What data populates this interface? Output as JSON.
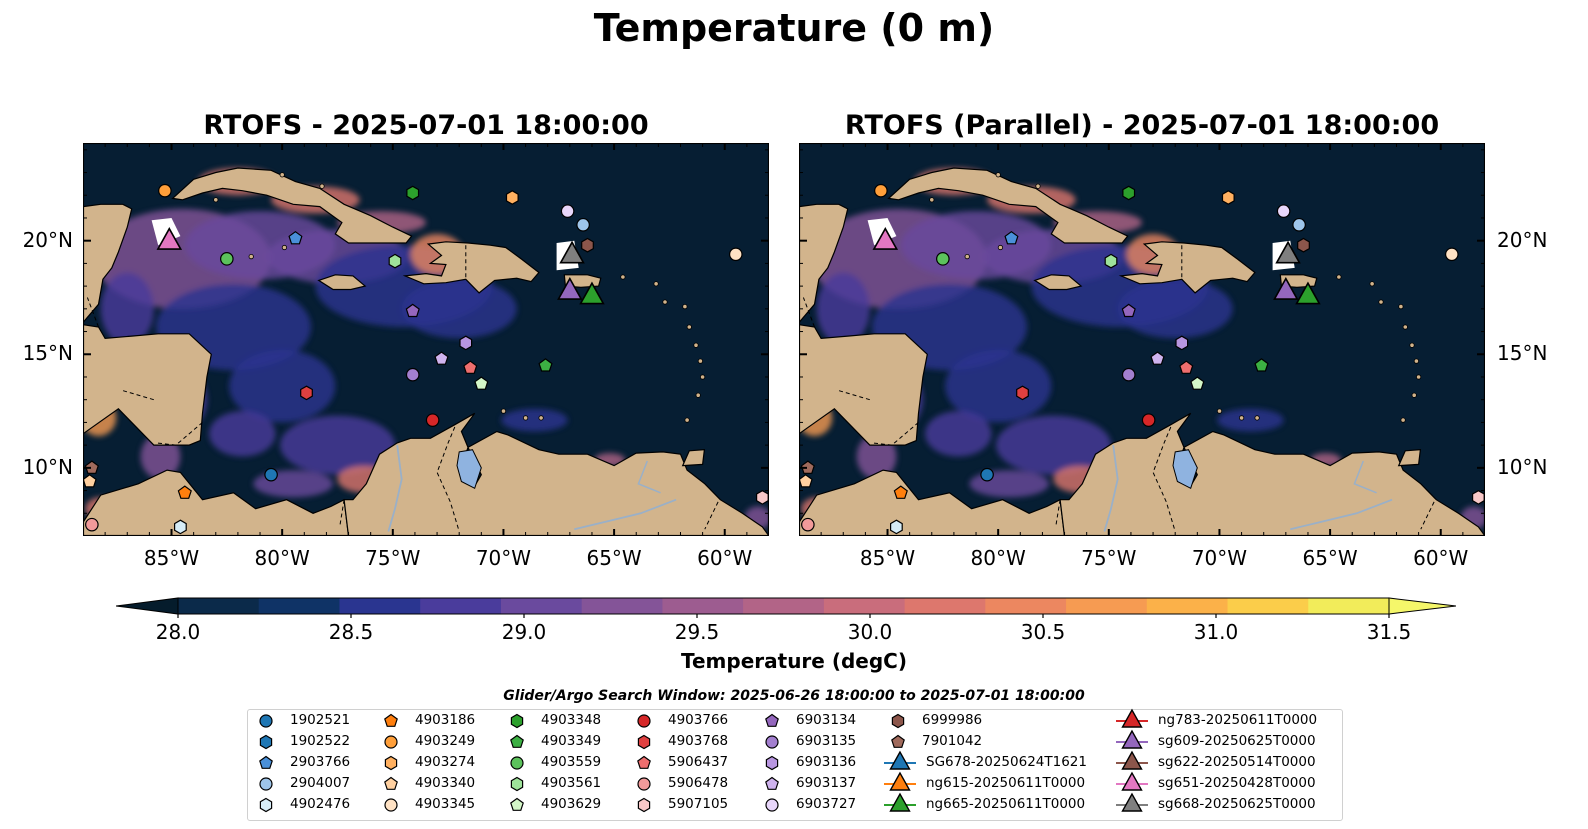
{
  "figure": {
    "suptitle": "Temperature (0 m)",
    "panels": [
      {
        "title": "RTOFS - 2025-07-01 18:00:00"
      },
      {
        "title": "RTOFS (Parallel) - 2025-07-01 18:00:00"
      }
    ]
  },
  "map": {
    "extent": {
      "lon": [
        -89,
        -58
      ],
      "lat": [
        7,
        24.3
      ]
    },
    "lon_ticks": [
      {
        "value": -85,
        "label": "85°W"
      },
      {
        "value": -80,
        "label": "80°W"
      },
      {
        "value": -75,
        "label": "75°W"
      },
      {
        "value": -70,
        "label": "70°W"
      },
      {
        "value": -65,
        "label": "65°W"
      },
      {
        "value": -60,
        "label": "60°W"
      }
    ],
    "lat_ticks": [
      {
        "value": 20,
        "label": "20°N"
      },
      {
        "value": 15,
        "label": "15°N"
      },
      {
        "value": 10,
        "label": "10°N"
      }
    ],
    "ocean_color": "#061e33",
    "land_color": "#d2b48c"
  },
  "colorbar": {
    "label": "Temperature (degC)",
    "range": [
      28.0,
      31.5
    ],
    "tick_values": [
      28.0,
      28.5,
      29.0,
      29.5,
      30.0,
      30.5,
      31.0,
      31.5
    ],
    "tick_labels": [
      "28.0",
      "28.5",
      "29.0",
      "29.5",
      "30.0",
      "30.5",
      "31.0",
      "31.5"
    ],
    "colors": [
      "#0b2a4a",
      "#0f3366",
      "#2a3590",
      "#4a3c9c",
      "#6a4a9e",
      "#845498",
      "#9d5c90",
      "#b26487",
      "#c96d7c",
      "#dd776d",
      "#ec8760",
      "#f69b52",
      "#fbb149",
      "#fbcd4a",
      "#f2ec5a"
    ],
    "under_color": "#051c2c",
    "over_color": "#f5f76a"
  },
  "legend": {
    "title": "Glider/Argo Search Window: 2025-06-26 18:00:00 to 2025-07-01 18:00:00",
    "argo_floats": [
      {
        "id": "1902521",
        "shape": "circle",
        "color": "#1f77b4",
        "lon": -80.5,
        "lat": 9.7
      },
      {
        "id": "1902522",
        "shape": "hexagon",
        "color": "#1f77b4",
        "lon": null,
        "lat": null
      },
      {
        "id": "2903766",
        "shape": "pentagon",
        "color": "#4a90d9",
        "lon": -79.4,
        "lat": 20.1
      },
      {
        "id": "2904007",
        "shape": "circle",
        "color": "#9ec5ea",
        "lon": -66.4,
        "lat": 20.7
      },
      {
        "id": "4902476",
        "shape": "hexagon",
        "color": "#d6ecf7",
        "lon": -84.6,
        "lat": 7.4
      },
      {
        "id": "4903186",
        "shape": "pentagon",
        "color": "#ff7f0e",
        "lon": -84.4,
        "lat": 8.9
      },
      {
        "id": "4903249",
        "shape": "circle",
        "color": "#ff9f3a",
        "lon": -85.3,
        "lat": 22.2
      },
      {
        "id": "4903274",
        "shape": "hexagon",
        "color": "#ffb060",
        "lon": -69.6,
        "lat": 21.9
      },
      {
        "id": "4903340",
        "shape": "pentagon",
        "color": "#ffd0a0",
        "lon": -88.7,
        "lat": 9.4
      },
      {
        "id": "4903345",
        "shape": "circle",
        "color": "#ffe2c4",
        "lon": -59.5,
        "lat": 19.4
      },
      {
        "id": "4903348",
        "shape": "hexagon",
        "color": "#2ca02c",
        "lon": -74.1,
        "lat": 22.1
      },
      {
        "id": "4903349",
        "shape": "pentagon",
        "color": "#3cb043",
        "lon": -68.1,
        "lat": 14.5
      },
      {
        "id": "4903559",
        "shape": "circle",
        "color": "#5cc25c",
        "lon": -82.5,
        "lat": 19.2
      },
      {
        "id": "4903561",
        "shape": "hexagon",
        "color": "#9ee29a",
        "lon": -74.9,
        "lat": 19.1
      },
      {
        "id": "4903629",
        "shape": "pentagon",
        "color": "#d4f7c8",
        "lon": -71.0,
        "lat": 13.7
      },
      {
        "id": "4903766",
        "shape": "circle",
        "color": "#d62728",
        "lon": -73.2,
        "lat": 12.1
      },
      {
        "id": "4903768",
        "shape": "hexagon",
        "color": "#e04040",
        "lon": -78.9,
        "lat": 13.3
      },
      {
        "id": "5906437",
        "shape": "pentagon",
        "color": "#ee6e6e",
        "lon": -71.5,
        "lat": 14.4
      },
      {
        "id": "5906478",
        "shape": "circle",
        "color": "#f29a9a",
        "lon": -88.6,
        "lat": 7.5
      },
      {
        "id": "5907105",
        "shape": "hexagon",
        "color": "#f8c8c8",
        "lon": -58.3,
        "lat": 8.7
      },
      {
        "id": "6903134",
        "shape": "pentagon",
        "color": "#9467bd",
        "lon": -74.1,
        "lat": 16.9
      },
      {
        "id": "6903135",
        "shape": "circle",
        "color": "#a37fcf",
        "lon": -74.1,
        "lat": 14.1
      },
      {
        "id": "6903136",
        "shape": "hexagon",
        "color": "#b896e0",
        "lon": -71.7,
        "lat": 15.5
      },
      {
        "id": "6903137",
        "shape": "pentagon",
        "color": "#cfb3ee",
        "lon": -72.8,
        "lat": 14.8
      },
      {
        "id": "6903727",
        "shape": "circle",
        "color": "#e8d6fa",
        "lon": -67.1,
        "lat": 21.3
      },
      {
        "id": "6999986",
        "shape": "hexagon",
        "color": "#8c564b",
        "lon": -66.2,
        "lat": 19.8
      },
      {
        "id": "7901042",
        "shape": "pentagon",
        "color": "#a06a5c",
        "lon": -88.6,
        "lat": 10.0
      }
    ],
    "gliders": [
      {
        "id": "SG678-20250624T1621",
        "color": "#1f77b4",
        "lon": null,
        "lat": null
      },
      {
        "id": "ng615-20250611T0000",
        "color": "#ff7f0e",
        "lon": null,
        "lat": null
      },
      {
        "id": "ng665-20250611T0000",
        "color": "#2ca02c",
        "lon": -66.0,
        "lat": 17.6
      },
      {
        "id": "ng783-20250611T0000",
        "color": "#d62728",
        "lon": null,
        "lat": null
      },
      {
        "id": "sg609-20250625T0000",
        "color": "#9467bd",
        "lon": -67.0,
        "lat": 17.8
      },
      {
        "id": "sg622-20250514T0000",
        "color": "#8c564b",
        "lon": null,
        "lat": null
      },
      {
        "id": "sg651-20250428T0000",
        "color": "#e377c2",
        "lon": -85.1,
        "lat": 20.0
      },
      {
        "id": "sg668-20250625T0000",
        "color": "#7f7f7f",
        "lon": -66.9,
        "lat": 19.4
      }
    ]
  }
}
